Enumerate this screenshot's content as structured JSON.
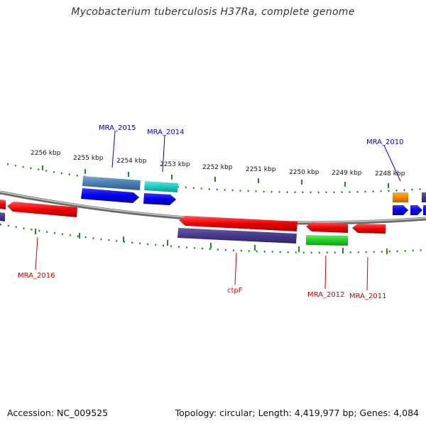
{
  "title": "Mycobacterium tuberculosis H37Ra, complete genome",
  "footer": {
    "accession": "Accession: NC_009525",
    "topology": "Topology: circular; Length: 4,419,977 bp; Genes: 4,084"
  },
  "scale_labels": [
    "2256 kbp",
    "2255 kbp",
    "2254 kbp",
    "2253 kbp",
    "2252 kbp",
    "2251 kbp",
    "2250 kbp",
    "2249 kbp",
    "2248 kbp"
  ],
  "gene_labels": {
    "top": [
      "MRA_2015",
      "MRA_2014",
      "MRA_2010"
    ],
    "bottom": [
      "MRA_2016",
      "ctpF",
      "MRA_2012",
      "MRA_2011"
    ]
  },
  "colors": {
    "label_top": "#0000cc",
    "label_bottom": "#cc0000",
    "tick": "#228822",
    "backbone": "#888888"
  }
}
